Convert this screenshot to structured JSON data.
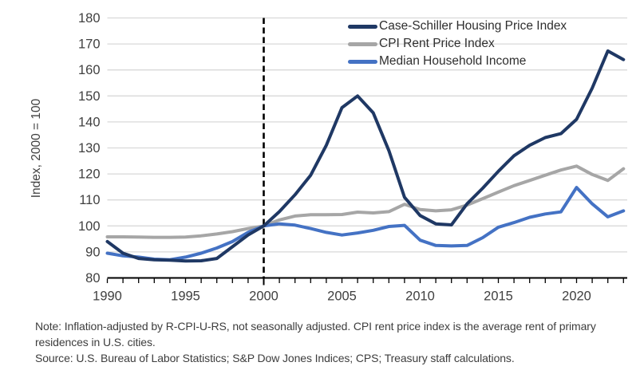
{
  "figure": {
    "y_axis_title": "Index, 2000 = 100",
    "note": "Note: Inflation-adjusted by R-CPI-U-RS, not seasonally adjusted. CPI rent price index is the average rent of primary residences in U.S. cities.",
    "source": "Source: U.S. Bureau of Labor Statistics; S&P Dow Jones Indices; CPS; Treasury staff calculations."
  },
  "chart_data": {
    "type": "line",
    "title": "",
    "xlabel": "",
    "ylabel": "Index, 2000 = 100",
    "ylim": [
      80,
      180
    ],
    "xlim": [
      1990,
      2023
    ],
    "y_ticks": [
      80,
      90,
      100,
      110,
      120,
      130,
      140,
      150,
      160,
      170,
      180
    ],
    "x_tick_labels": [
      1990,
      1995,
      2000,
      2005,
      2010,
      2015,
      2020
    ],
    "x_minor_tick_interval": 1,
    "reference_line_x": 2000,
    "reference_line_style": "dashed-black",
    "grid": "horizontal",
    "gridline_color": "#d9d9d9",
    "axis_color": "#000000",
    "text_color": "#404040",
    "legend_position": "top-right",
    "x": [
      1990,
      1991,
      1992,
      1993,
      1994,
      1995,
      1996,
      1997,
      1998,
      1999,
      2000,
      2001,
      2002,
      2003,
      2004,
      2005,
      2006,
      2007,
      2008,
      2009,
      2010,
      2011,
      2012,
      2013,
      2014,
      2015,
      2016,
      2017,
      2018,
      2019,
      2020,
      2021,
      2022,
      2023
    ],
    "series": [
      {
        "name": "Case-Schiller Housing Price Index",
        "color": "#1f3864",
        "values": [
          94,
          89.5,
          87.5,
          87,
          86.8,
          86.5,
          86.6,
          87.5,
          92,
          96.5,
          100,
          105.5,
          112,
          119.5,
          131,
          145.5,
          150,
          143.5,
          129,
          111,
          104,
          100.8,
          100.4,
          108.5,
          114.5,
          121,
          127,
          131,
          134,
          135.5,
          141,
          153,
          167.3,
          164
        ]
      },
      {
        "name": "CPI Rent Price Index",
        "color": "#a6a6a6",
        "values": [
          95.8,
          95.8,
          95.7,
          95.6,
          95.6,
          95.7,
          96.2,
          96.9,
          97.8,
          99,
          100,
          102.3,
          103.8,
          104.3,
          104.3,
          104.4,
          105.3,
          105,
          105.5,
          108.3,
          106.3,
          105.8,
          106.2,
          108,
          110.5,
          113,
          115.5,
          117.5,
          119.5,
          121.5,
          123,
          119.8,
          117.5,
          122
        ]
      },
      {
        "name": "Median Household Income",
        "color": "#4472c4",
        "values": [
          89.5,
          88.5,
          88,
          87.2,
          87,
          88,
          89.5,
          91.5,
          94,
          97.5,
          100,
          100.8,
          100.3,
          99,
          97.5,
          96.5,
          97.3,
          98.3,
          99.8,
          100.2,
          94.5,
          92.5,
          92.3,
          92.5,
          95.5,
          99.5,
          101.3,
          103.3,
          104.6,
          105.4,
          114.8,
          108.5,
          103.5,
          105.8
        ]
      }
    ]
  }
}
